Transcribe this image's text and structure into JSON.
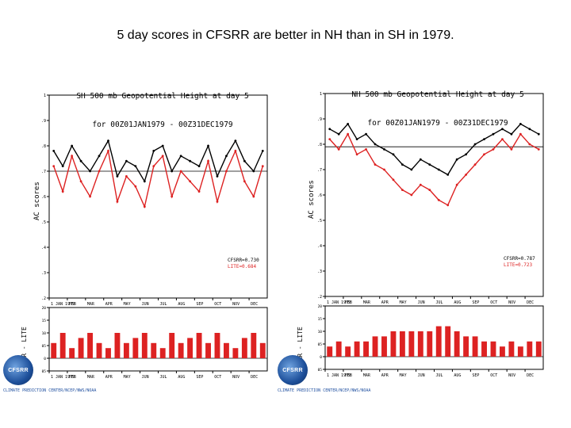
{
  "slide": {
    "title": "5 day scores in CFSRR are better in NH than in SH in 1979."
  },
  "colors": {
    "cfsrr": "#000000",
    "lite": "#dd2222",
    "diff": "#dd2222"
  },
  "panels": [
    {
      "id": "sh",
      "title_line1": "SH 500 mb Geopotential Height at day 5",
      "title_line2": "for 00Z01JAN1979 - 00Z31DEC1979",
      "ylabel": "AC scores",
      "diff_ylabel": "CFSRR - LITE",
      "legend": [
        "CFSRR=0.730",
        "LITE=0.684"
      ],
      "logo_text": "CFSRR",
      "credit": "CLIMATE PREDICTION CENTER/NCEP/NWS/NOAA"
    },
    {
      "id": "nh",
      "title_line1": "NH 500 mb Geopotential Height at day 5",
      "title_line2": "for 00Z01JAN1979 - 00Z31DEC1979",
      "ylabel": "AC scores",
      "diff_ylabel": "CFSRR - LITE",
      "legend": [
        "CFSRR=0.787",
        "LITE=0.723"
      ],
      "logo_text": "CFSRR",
      "credit": "CLIMATE PREDICTION CENTER/NCEP/NWS/NOAA"
    }
  ],
  "chart_data": [
    {
      "type": "line",
      "panel": "sh",
      "title": "SH 500 mb Geopotential Height at day 5 for 00Z01JAN1979 - 00Z31DEC1979",
      "ylabel": "AC scores",
      "xlabel": "",
      "ylim": [
        0.2,
        1.0
      ],
      "yticks": [
        "1",
        ".9",
        ".8",
        ".7",
        ".6",
        ".5",
        ".4",
        ".3",
        ".2"
      ],
      "xticks": [
        "1 JAN 1979",
        "FEB",
        "MAR",
        "APR",
        "MAY",
        "JUN",
        "JUL",
        "AUG",
        "SEP",
        "OCT",
        "NOV",
        "DEC"
      ],
      "mean_line": 0.7,
      "x": [
        "01JAN",
        "15JAN",
        "01FEB",
        "15FEB",
        "01MAR",
        "15MAR",
        "01APR",
        "15APR",
        "01MAY",
        "15MAY",
        "01JUN",
        "15JUN",
        "01JUL",
        "15JUL",
        "01AUG",
        "15AUG",
        "01SEP",
        "15SEP",
        "01OCT",
        "15OCT",
        "01NOV",
        "15NOV",
        "01DEC",
        "15DEC"
      ],
      "series": [
        {
          "name": "CFSRR",
          "values": [
            0.78,
            0.72,
            0.8,
            0.74,
            0.7,
            0.76,
            0.82,
            0.68,
            0.74,
            0.72,
            0.66,
            0.78,
            0.8,
            0.7,
            0.76,
            0.74,
            0.72,
            0.8,
            0.68,
            0.76,
            0.82,
            0.74,
            0.7,
            0.78
          ]
        },
        {
          "name": "LITE",
          "values": [
            0.72,
            0.62,
            0.76,
            0.66,
            0.6,
            0.7,
            0.78,
            0.58,
            0.68,
            0.64,
            0.56,
            0.72,
            0.76,
            0.6,
            0.7,
            0.66,
            0.62,
            0.74,
            0.58,
            0.7,
            0.78,
            0.66,
            0.6,
            0.72
          ]
        }
      ]
    },
    {
      "type": "bar",
      "panel": "sh",
      "title": "CFSRR - LITE",
      "ylim": [
        -0.05,
        0.2
      ],
      "yticks": [
        ".20",
        ".15",
        ".10",
        ".05",
        "0",
        "-.05"
      ],
      "xticks": [
        "1 JAN 1979",
        "FEB",
        "MAR",
        "APR",
        "MAY",
        "JUN",
        "JUL",
        "AUG",
        "SEP",
        "OCT",
        "NOV",
        "DEC"
      ],
      "x": [
        "01JAN",
        "15JAN",
        "01FEB",
        "15FEB",
        "01MAR",
        "15MAR",
        "01APR",
        "15APR",
        "01MAY",
        "15MAY",
        "01JUN",
        "15JUN",
        "01JUL",
        "15JUL",
        "01AUG",
        "15AUG",
        "01SEP",
        "15SEP",
        "01OCT",
        "15OCT",
        "01NOV",
        "15NOV",
        "01DEC",
        "15DEC"
      ],
      "values": [
        0.06,
        0.1,
        0.04,
        0.08,
        0.1,
        0.06,
        0.04,
        0.1,
        0.06,
        0.08,
        0.1,
        0.06,
        0.04,
        0.1,
        0.06,
        0.08,
        0.1,
        0.06,
        0.1,
        0.06,
        0.04,
        0.08,
        0.1,
        0.06
      ]
    },
    {
      "type": "line",
      "panel": "nh",
      "title": "NH 500 mb Geopotential Height at day 5 for 00Z01JAN1979 - 00Z31DEC1979",
      "ylabel": "AC scores",
      "xlabel": "",
      "ylim": [
        0.2,
        1.0
      ],
      "yticks": [
        "1",
        ".9",
        ".8",
        ".7",
        ".6",
        ".5",
        ".4",
        ".3",
        ".2"
      ],
      "xticks": [
        "1 JAN 1979",
        "FEB",
        "MAR",
        "APR",
        "MAY",
        "JUN",
        "JUL",
        "AUG",
        "SEP",
        "OCT",
        "NOV",
        "DEC"
      ],
      "mean_line": 0.79,
      "x": [
        "01JAN",
        "15JAN",
        "01FEB",
        "15FEB",
        "01MAR",
        "15MAR",
        "01APR",
        "15APR",
        "01MAY",
        "15MAY",
        "01JUN",
        "15JUN",
        "01JUL",
        "15JUL",
        "01AUG",
        "15AUG",
        "01SEP",
        "15SEP",
        "01OCT",
        "15OCT",
        "01NOV",
        "15NOV",
        "01DEC",
        "15DEC"
      ],
      "series": [
        {
          "name": "CFSRR",
          "values": [
            0.86,
            0.84,
            0.88,
            0.82,
            0.84,
            0.8,
            0.78,
            0.76,
            0.72,
            0.7,
            0.74,
            0.72,
            0.7,
            0.68,
            0.74,
            0.76,
            0.8,
            0.82,
            0.84,
            0.86,
            0.84,
            0.88,
            0.86,
            0.84
          ]
        },
        {
          "name": "LITE",
          "values": [
            0.82,
            0.78,
            0.84,
            0.76,
            0.78,
            0.72,
            0.7,
            0.66,
            0.62,
            0.6,
            0.64,
            0.62,
            0.58,
            0.56,
            0.64,
            0.68,
            0.72,
            0.76,
            0.78,
            0.82,
            0.78,
            0.84,
            0.8,
            0.78
          ]
        }
      ]
    },
    {
      "type": "bar",
      "panel": "nh",
      "title": "CFSRR - LITE",
      "ylim": [
        -0.05,
        0.2
      ],
      "yticks": [
        ".20",
        ".15",
        ".10",
        ".05",
        "0",
        "-.05"
      ],
      "xticks": [
        "1 JAN 1979",
        "FEB",
        "MAR",
        "APR",
        "MAY",
        "JUN",
        "JUL",
        "AUG",
        "SEP",
        "OCT",
        "NOV",
        "DEC"
      ],
      "x": [
        "01JAN",
        "15JAN",
        "01FEB",
        "15FEB",
        "01MAR",
        "15MAR",
        "01APR",
        "15APR",
        "01MAY",
        "15MAY",
        "01JUN",
        "15JUN",
        "01JUL",
        "15JUL",
        "01AUG",
        "15AUG",
        "01SEP",
        "15SEP",
        "01OCT",
        "15OCT",
        "01NOV",
        "15NOV",
        "01DEC",
        "15DEC"
      ],
      "values": [
        0.04,
        0.06,
        0.04,
        0.06,
        0.06,
        0.08,
        0.08,
        0.1,
        0.1,
        0.1,
        0.1,
        0.1,
        0.12,
        0.12,
        0.1,
        0.08,
        0.08,
        0.06,
        0.06,
        0.04,
        0.06,
        0.04,
        0.06,
        0.06
      ]
    }
  ]
}
